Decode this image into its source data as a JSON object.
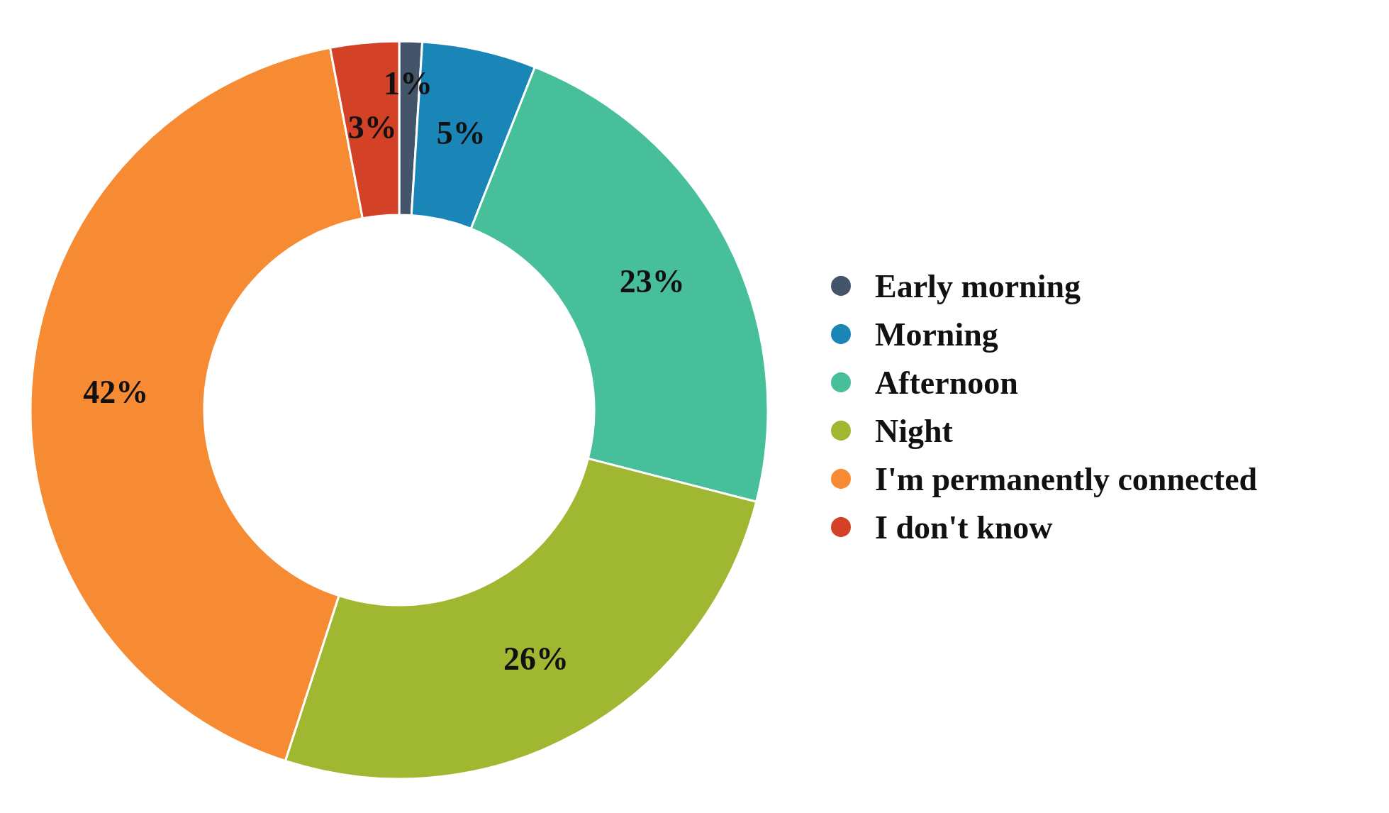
{
  "chart_data": {
    "type": "donut",
    "categories": [
      "Early morning",
      "Morning",
      "Afternoon",
      "Night",
      "I'm permanently connected",
      "I don't know"
    ],
    "values": [
      1,
      5,
      23,
      26,
      42,
      3
    ],
    "value_labels": [
      "1%",
      "5%",
      "23%",
      "26%",
      "42%",
      "3%"
    ],
    "colors": [
      "#44546a",
      "#1a86b8",
      "#46bf9a",
      "#a0b732",
      "#f68b33",
      "#d34226"
    ],
    "legend": "right"
  }
}
